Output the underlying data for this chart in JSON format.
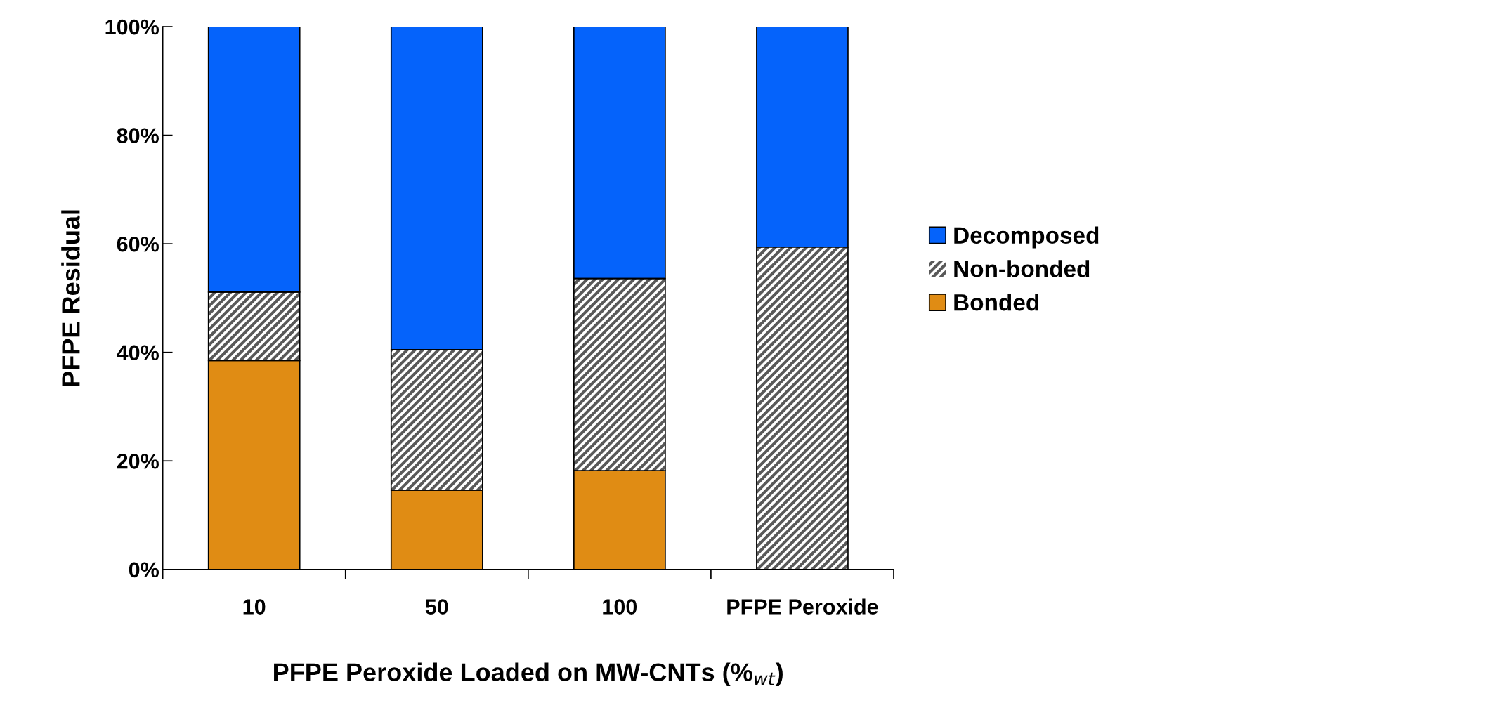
{
  "chart_data": {
    "type": "bar",
    "stacked": true,
    "xlabel": "PFPE Peroxide Loaded on MW-CNTs (%$_{wt}$)",
    "ylabel": "PFPE Residual",
    "categories": [
      "10",
      "50",
      "100",
      "PFPE Peroxide"
    ],
    "series": [
      {
        "name": "Bonded",
        "color": "#e08c14",
        "values": [
          38.5,
          14.6,
          18.2,
          0
        ]
      },
      {
        "name": "Non-bonded",
        "color": "#595959",
        "values": [
          12.6,
          25.9,
          35.4,
          59.4
        ]
      },
      {
        "name": "Decomposed",
        "color": "#0563fb",
        "values": [
          48.9,
          59.5,
          46.4,
          40.6
        ]
      }
    ],
    "ylim": [
      0,
      100
    ],
    "yticks": [
      {
        "value": 0,
        "label": "0%"
      },
      {
        "value": 20,
        "label": "20%"
      },
      {
        "value": 40,
        "label": "40%"
      },
      {
        "value": 60,
        "label": "60%"
      },
      {
        "value": 80,
        "label": "80%"
      },
      {
        "value": 100,
        "label": "100%"
      }
    ],
    "grid": false,
    "legend": "right"
  }
}
